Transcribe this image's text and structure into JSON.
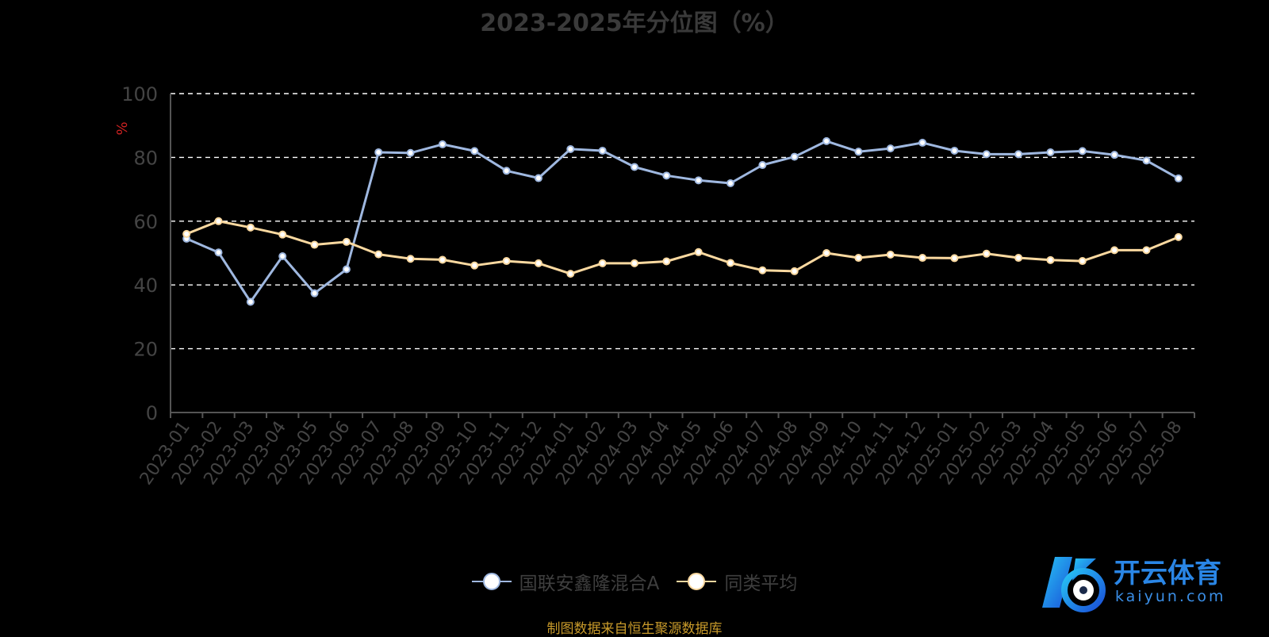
{
  "chart_data": {
    "type": "line",
    "title": "2023-2025年分位图（%）",
    "ylabel": "%",
    "xlabel": "",
    "ylim": [
      0,
      100
    ],
    "yticks": [
      0,
      20,
      40,
      60,
      80,
      100
    ],
    "grid": true,
    "legend_position": "bottom-center",
    "categories": [
      "2023-01",
      "2023-02",
      "2023-03",
      "2023-04",
      "2023-05",
      "2023-06",
      "2023-07",
      "2023-08",
      "2023-09",
      "2023-10",
      "2023-11",
      "2023-12",
      "2024-01",
      "2024-02",
      "2024-03",
      "2024-04",
      "2024-05",
      "2024-06",
      "2024-07",
      "2024-08",
      "2024-09",
      "2024-10",
      "2024-11",
      "2024-12",
      "2025-01",
      "2025-02",
      "2025-03",
      "2025-04",
      "2025-05",
      "2025-06",
      "2025-07",
      "2025-08"
    ],
    "series": [
      {
        "name": "国联安鑫隆混合A",
        "color": "#9fb8e0",
        "values": [
          54.5,
          50.2,
          34.7,
          49.0,
          37.4,
          44.9,
          81.6,
          81.4,
          84.1,
          82.0,
          75.8,
          73.5,
          82.6,
          82.1,
          77.0,
          74.3,
          72.8,
          71.9,
          77.6,
          80.2,
          85.1,
          81.8,
          82.8,
          84.6,
          82.1,
          81.0,
          81.0,
          81.6,
          82.0,
          80.8,
          79.0,
          73.4
        ]
      },
      {
        "name": "同类平均",
        "color": "#fbd9a0",
        "values": [
          56.0,
          60.0,
          58.0,
          55.8,
          52.6,
          53.5,
          49.6,
          48.2,
          47.9,
          46.1,
          47.5,
          46.8,
          43.5,
          46.8,
          46.8,
          47.4,
          50.3,
          46.9,
          44.6,
          44.3,
          50.0,
          48.5,
          49.5,
          48.5,
          48.4,
          49.8,
          48.5,
          47.8,
          47.5,
          50.9,
          50.9,
          55.0
        ]
      }
    ],
    "axis_color": "#555555",
    "tick_label_color": "#444444",
    "ylabel_color": "#cc2222",
    "grid_color": "#ffffff"
  },
  "footer": {
    "source_note": "制图数据来自恒生聚源数据库"
  },
  "watermark": {
    "brand": "开云体育",
    "domain": "kaiyun.com"
  }
}
